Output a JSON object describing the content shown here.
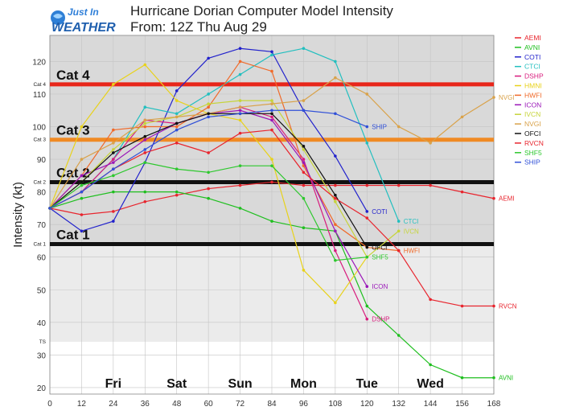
{
  "header": {
    "logo_line1": "Just In",
    "logo_line2": "WEATHER",
    "title_line1": "Hurricane Dorian Computer Model Intensity",
    "title_line2": "From: 12Z Thu Aug 29"
  },
  "colors": {
    "plot_bg_upper": "#d9d9d9",
    "plot_bg_lower": "#ebebeb",
    "cat4": "#e8261a",
    "cat3": "#f08a24",
    "cat2": "#111111",
    "cat1": "#111111"
  },
  "chart_data": {
    "type": "line",
    "title": "Hurricane Dorian Computer Model Intensity",
    "subtitle": "From: 12Z Thu Aug 29",
    "xlabel": "",
    "ylabel": "Intensity (kt)",
    "xlim": [
      0,
      168
    ],
    "ylim": [
      18,
      128
    ],
    "xticks": [
      0,
      12,
      24,
      36,
      48,
      60,
      72,
      84,
      96,
      108,
      120,
      132,
      144,
      156,
      168
    ],
    "yticks": [
      20,
      30,
      40,
      50,
      60,
      70,
      80,
      90,
      100,
      110,
      120
    ],
    "day_labels": [
      {
        "label": "Fri",
        "x": 24
      },
      {
        "label": "Sat",
        "x": 48
      },
      {
        "label": "Sun",
        "x": 72
      },
      {
        "label": "Mon",
        "x": 96
      },
      {
        "label": "Tue",
        "x": 120
      },
      {
        "label": "Wed",
        "x": 144
      }
    ],
    "thresholds": [
      {
        "tick": "TS",
        "value": 34
      },
      {
        "tick": "Cat 1",
        "value": 64,
        "label": "Cat 1",
        "color": "#111111"
      },
      {
        "tick": "Cat 2",
        "value": 83,
        "label": "Cat 2",
        "color": "#111111"
      },
      {
        "tick": "Cat 3",
        "value": 96,
        "label": "Cat 3",
        "color": "#f08a24"
      },
      {
        "tick": "Cat 4",
        "value": 113,
        "label": "Cat 4",
        "color": "#e8261a"
      }
    ],
    "legend_position": "right",
    "series": [
      {
        "name": "AEMI",
        "color": "#e8252e",
        "end_label": "AEMI",
        "x": [
          0,
          12,
          24,
          36,
          48,
          60,
          72,
          84,
          96,
          108,
          120,
          132,
          144,
          156,
          168
        ],
        "y": [
          75,
          73,
          74,
          77,
          79,
          81,
          82,
          83,
          82,
          82,
          82,
          82,
          82,
          80,
          78
        ]
      },
      {
        "name": "AVNI",
        "color": "#1fbf1f",
        "end_label": "AVNI",
        "x": [
          0,
          12,
          24,
          36,
          48,
          60,
          72,
          84,
          96,
          108,
          120,
          132,
          144,
          156,
          168
        ],
        "y": [
          75,
          78,
          80,
          80,
          80,
          78,
          75,
          71,
          69,
          68,
          45,
          36,
          27,
          23,
          23
        ]
      },
      {
        "name": "COTI",
        "color": "#2222cc",
        "end_label": "COTI",
        "x": [
          0,
          12,
          24,
          36,
          48,
          60,
          72,
          84,
          96,
          108,
          120
        ],
        "y": [
          75,
          68,
          71,
          89,
          111,
          121,
          124,
          123,
          105,
          91,
          74
        ]
      },
      {
        "name": "CTCI",
        "color": "#22bfbf",
        "end_label": "CTCI",
        "x": [
          0,
          12,
          24,
          36,
          48,
          60,
          72,
          84,
          96,
          108,
          120,
          132
        ],
        "y": [
          75,
          80,
          90,
          106,
          104,
          110,
          116,
          122,
          124,
          120,
          95,
          71
        ]
      },
      {
        "name": "DSHP",
        "color": "#d81b7d",
        "end_label": "DSHP",
        "x": [
          0,
          12,
          24,
          36,
          48,
          60,
          72,
          84,
          96,
          108,
          120
        ],
        "y": [
          75,
          80,
          90,
          102,
          101,
          104,
          106,
          103,
          90,
          62,
          41
        ]
      },
      {
        "name": "HMNI",
        "color": "#e8d21a",
        "end_label": "",
        "x": [
          0,
          12,
          24,
          36,
          48,
          60,
          72,
          84,
          96,
          108,
          120
        ],
        "y": [
          75,
          100,
          113,
          119,
          108,
          104,
          102,
          90,
          56,
          46,
          60
        ]
      },
      {
        "name": "HWFI",
        "color": "#f06a2a",
        "end_label": "HWFI",
        "x": [
          0,
          12,
          24,
          36,
          48,
          60,
          72,
          84,
          96,
          108,
          120,
          132
        ],
        "y": [
          75,
          85,
          99,
          100,
          100,
          106,
          120,
          117,
          88,
          70,
          63,
          62
        ]
      },
      {
        "name": "ICON",
        "color": "#9a16b8",
        "end_label": "ICON",
        "x": [
          0,
          12,
          24,
          36,
          48,
          60,
          72,
          84,
          96,
          108,
          120
        ],
        "y": [
          75,
          85,
          89,
          96,
          101,
          104,
          105,
          102,
          89,
          68,
          51
        ]
      },
      {
        "name": "IVCN",
        "color": "#c6d43a",
        "end_label": "IVCN",
        "x": [
          0,
          12,
          24,
          36,
          48,
          60,
          72,
          84,
          96,
          108,
          120,
          132
        ],
        "y": [
          75,
          83,
          93,
          101,
          103,
          107,
          108,
          108,
          93,
          77,
          60,
          68
        ]
      },
      {
        "name": "NVGI",
        "color": "#d9a24a",
        "end_label": "NVGI",
        "x": [
          0,
          12,
          24,
          36,
          48,
          60,
          72,
          84,
          96,
          108,
          120,
          132,
          144,
          156,
          168
        ],
        "y": [
          75,
          90,
          95,
          102,
          103,
          104,
          106,
          107,
          108,
          115,
          110,
          100,
          95,
          103,
          109
        ]
      },
      {
        "name": "OFCI",
        "color": "#111111",
        "end_label": "OFCI",
        "x": [
          0,
          12,
          24,
          36,
          48,
          60,
          72,
          84,
          96,
          108,
          120
        ],
        "y": [
          75,
          83,
          92,
          97,
          101,
          104,
          104,
          104,
          94,
          79,
          63
        ]
      },
      {
        "name": "RVCN",
        "color": "#e8252e",
        "end_label": "RVCN",
        "x": [
          0,
          12,
          24,
          36,
          48,
          60,
          72,
          84,
          96,
          108,
          120,
          132,
          144,
          156,
          168
        ],
        "y": [
          75,
          80,
          87,
          92,
          95,
          92,
          98,
          99,
          86,
          78,
          72,
          62,
          47,
          45,
          45
        ]
      },
      {
        "name": "SHF5",
        "color": "#2ec82e",
        "end_label": "SHF5",
        "x": [
          0,
          12,
          24,
          36,
          48,
          60,
          72,
          84,
          96,
          108,
          120
        ],
        "y": [
          75,
          82,
          85,
          89,
          87,
          86,
          88,
          88,
          78,
          59,
          60
        ]
      },
      {
        "name": "SHIP",
        "color": "#3050d8",
        "end_label": "SHIP",
        "x": [
          0,
          12,
          24,
          36,
          48,
          60,
          72,
          84,
          96,
          108,
          120
        ],
        "y": [
          75,
          80,
          87,
          93,
          99,
          103,
          104,
          105,
          105,
          104,
          100
        ]
      }
    ]
  }
}
